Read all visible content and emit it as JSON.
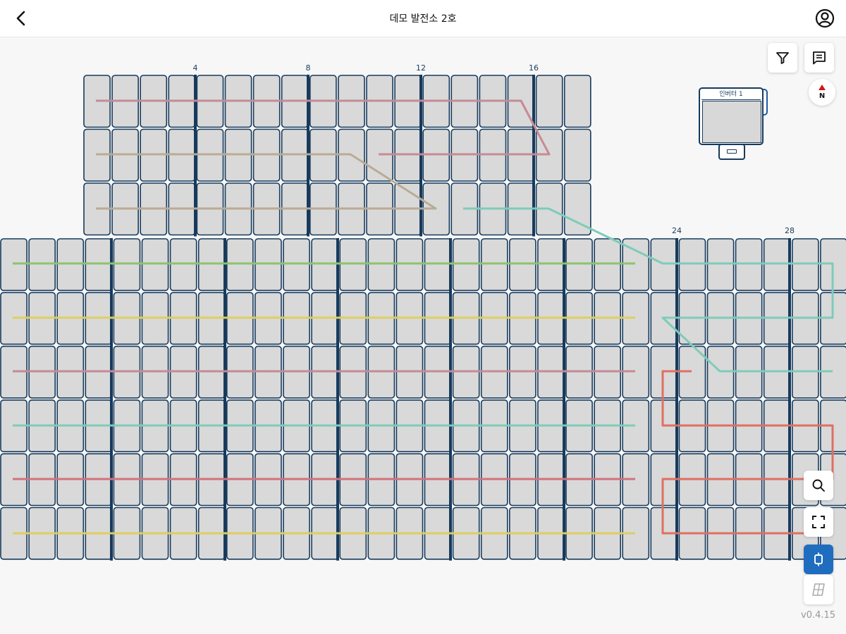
{
  "header": {
    "title": "데모 발전소 2호",
    "back_icon": "chevron-left-icon",
    "profile_icon": "user-circle-icon"
  },
  "layout_map": {
    "upper_block": {
      "rows": 3,
      "columns": 18
    },
    "lower_block": {
      "rows": 6,
      "columns": 30
    },
    "column_numbers": [
      "4",
      "8",
      "12",
      "16",
      "24",
      "28"
    ],
    "string_colors": {
      "pink": "#c48b96",
      "tan": "#b9ab96",
      "teal": "#7fcbb9",
      "green": "#8cc46e",
      "yellow": "#ddce62",
      "red_pink": "#d1727c",
      "coral": "#e06f63"
    }
  },
  "inverter": {
    "label": "인버터 1"
  },
  "compass": {
    "label": "N"
  },
  "toolbar": {
    "filter_icon": "filter-icon",
    "memo_icon": "memo-icon",
    "search_icon": "search-icon",
    "fit_icon": "fit-screen-icon",
    "inverter_mode_icon": "inverter-icon",
    "panel_mode_icon": "panel-icon"
  },
  "colors": {
    "panel_fill": "#d9d9d9",
    "panel_border": "#173a5c",
    "accent": "#1f6dbf"
  },
  "version": "v0.4.15"
}
